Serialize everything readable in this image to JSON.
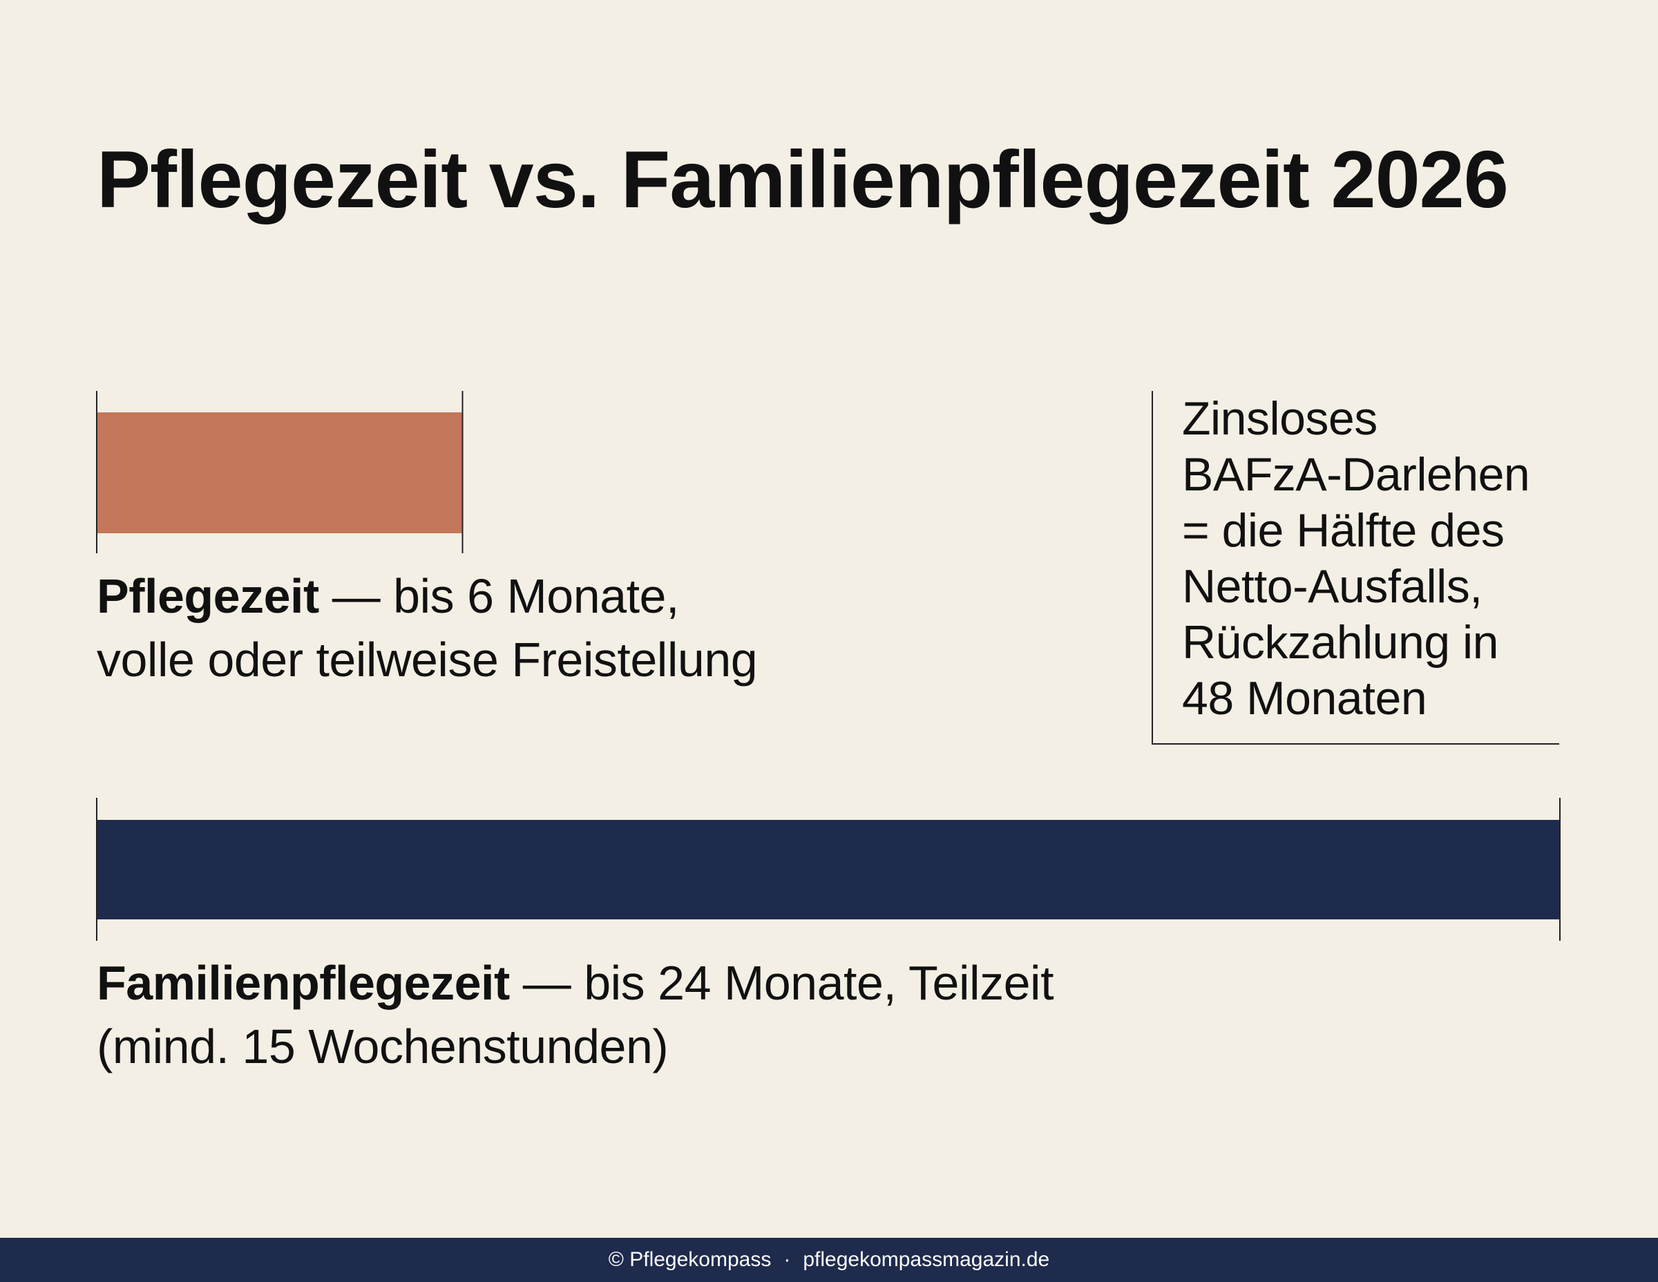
{
  "title": "Pflegezeit vs. Familienpflegezeit 2026",
  "chart_data": {
    "type": "bar",
    "orientation": "horizontal",
    "title": "Pflegezeit vs. Familienpflegezeit 2026",
    "categories": [
      "Pflegezeit",
      "Familienpflegezeit"
    ],
    "values": [
      6,
      24
    ],
    "unit": "Monate",
    "xlim": [
      0,
      24
    ],
    "grid": false,
    "legend": "none",
    "bars": [
      {
        "name": "Pflegezeit",
        "max_months": 6,
        "color": "#C4775A",
        "label_name": "Pflegezeit",
        "label_dash": " — ",
        "label_line1": "bis 6 Monate,",
        "label_line2": "volle oder teilweise Freistellung"
      },
      {
        "name": "Familienpflegezeit",
        "max_months": 24,
        "color": "#1F2B4D",
        "label_name": "Familienpflegezeit",
        "label_dash": " — ",
        "label_line1": "bis 24 Monate, Teilzeit",
        "label_line2": "(mind. 15 Wochenstunden)"
      }
    ],
    "annotation": {
      "text": "Zinsloses\nBAFzA-Darlehen\n= die Hälfte des\nNetto-Ausfalls,\nRückzahlung in\n48 Monaten"
    }
  },
  "footer": {
    "copyright": "© Pflegekompass",
    "separator": "·",
    "website": "pflegekompassmagazin.de"
  },
  "colors": {
    "background": "#F4EFE4",
    "pflegezeit": "#C4775A",
    "familienpflegezeit": "#1F2B4D",
    "text": "#111111",
    "footer_bg": "#1F2B4D",
    "footer_text": "#FFFFFF"
  }
}
